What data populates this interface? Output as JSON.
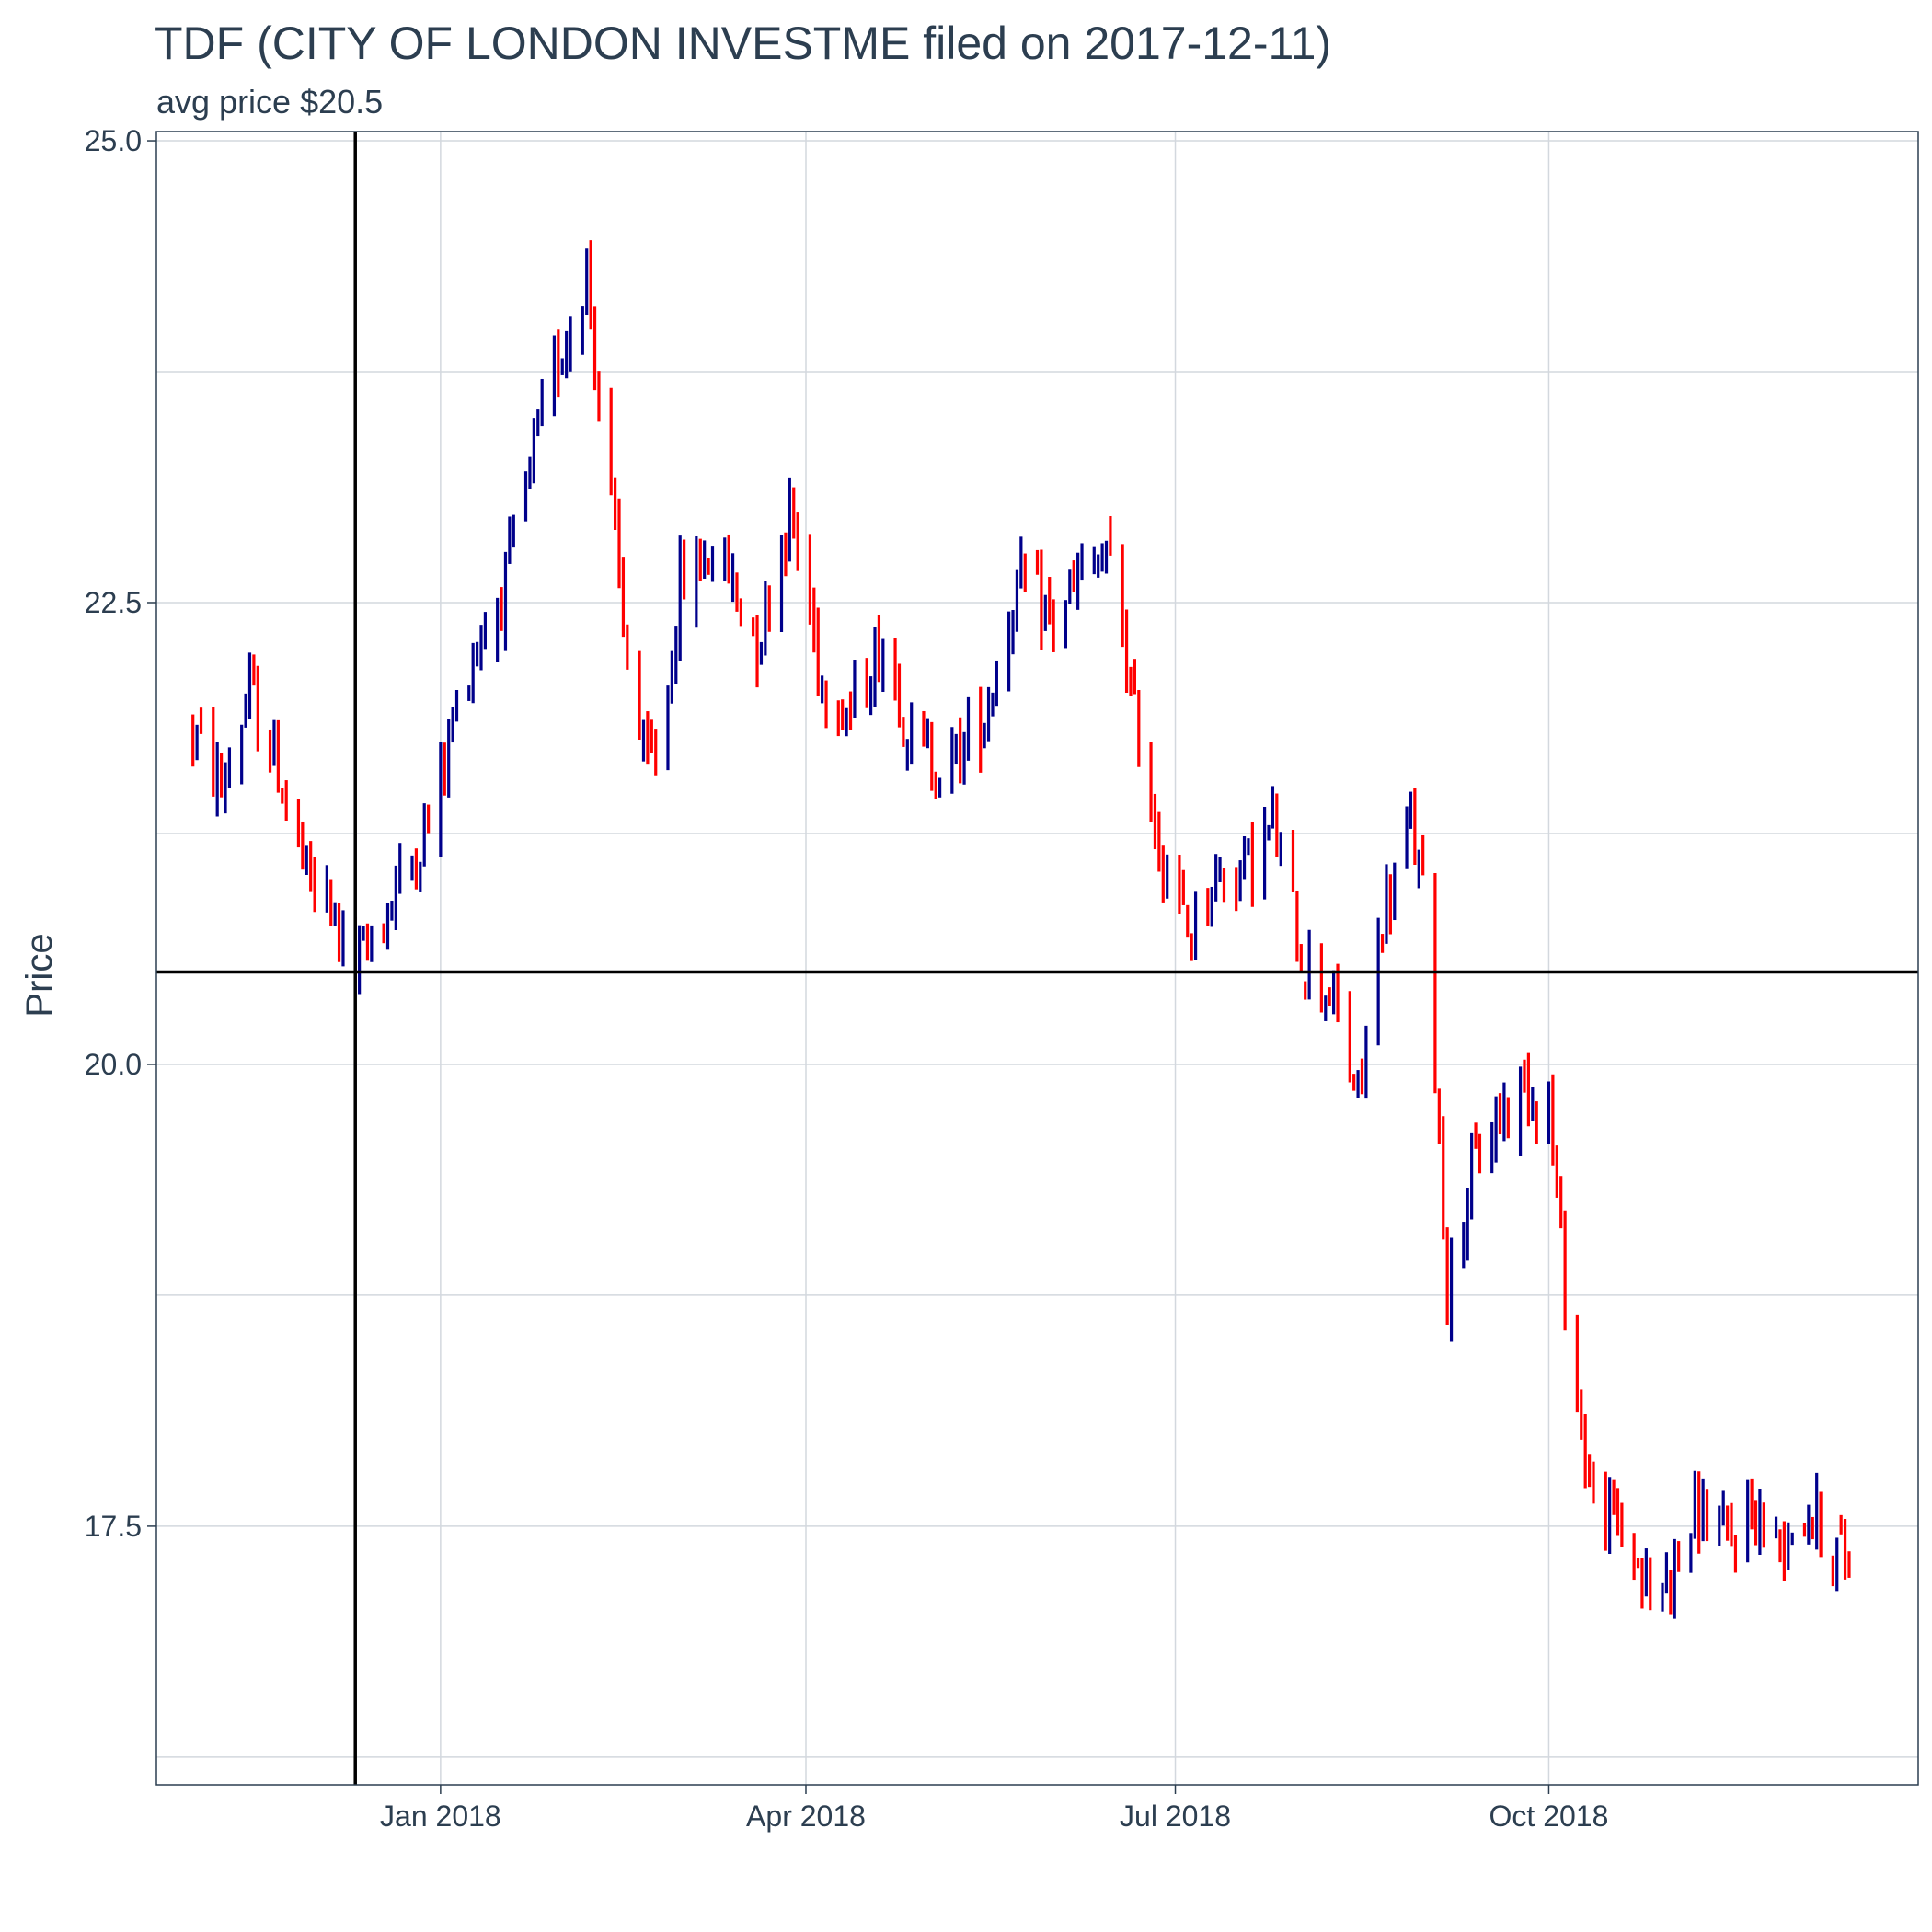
{
  "chart_data": {
    "type": "ohlc",
    "title": "TDF (CITY OF LONDON INVESTME filed on 2017-12-11)",
    "subtitle": "avg price $20.5",
    "xlabel": "",
    "ylabel": "Price",
    "xlim": [
      "2017-10-23",
      "2018-12-31"
    ],
    "ylim": [
      16.1,
      25.05
    ],
    "y_ticks": [
      17.5,
      20.0,
      22.5,
      25.0
    ],
    "y_tick_labels": [
      "17.5",
      "20.0",
      "22.5",
      "25.0"
    ],
    "y_minor_ticks": [
      16.25,
      18.75,
      21.25,
      23.75
    ],
    "x_ticks": [
      "2018-01-01",
      "2018-04-01",
      "2018-07-01",
      "2018-10-01"
    ],
    "x_tick_labels": [
      "Jan 2018",
      "Apr 2018",
      "Jul 2018",
      "Oct 2018"
    ],
    "reference_lines": {
      "filing_date": "2017-12-11",
      "avg_price": 20.5
    },
    "grid": true,
    "colors": {
      "up": "#00008B",
      "down": "#FF0000",
      "grid": "#d3d8de",
      "reference": "#000000",
      "text": "#2c3e50"
    },
    "price_path": [
      [
        "2017-11-01",
        21.8
      ],
      [
        "2017-11-08",
        21.5
      ],
      [
        "2017-11-15",
        22.0
      ],
      [
        "2017-11-22",
        21.6
      ],
      [
        "2017-11-29",
        21.0
      ],
      [
        "2017-12-06",
        20.8
      ],
      [
        "2017-12-11",
        20.5
      ],
      [
        "2017-12-20",
        20.9
      ],
      [
        "2017-12-29",
        21.3
      ],
      [
        "2018-01-08",
        22.2
      ],
      [
        "2018-01-17",
        22.6
      ],
      [
        "2018-01-24",
        23.3
      ],
      [
        "2018-01-31",
        23.9
      ],
      [
        "2018-02-06",
        24.3
      ],
      [
        "2018-02-10",
        23.4
      ],
      [
        "2018-02-15",
        22.4
      ],
      [
        "2018-02-20",
        21.6
      ],
      [
        "2018-02-24",
        21.7
      ],
      [
        "2018-03-01",
        22.6
      ],
      [
        "2018-03-10",
        22.8
      ],
      [
        "2018-03-20",
        22.3
      ],
      [
        "2018-03-28",
        23.0
      ],
      [
        "2018-04-05",
        22.1
      ],
      [
        "2018-04-12",
        21.9
      ],
      [
        "2018-04-20",
        22.3
      ],
      [
        "2018-04-28",
        21.7
      ],
      [
        "2018-05-06",
        21.6
      ],
      [
        "2018-05-15",
        21.9
      ],
      [
        "2018-05-23",
        22.6
      ],
      [
        "2018-06-01",
        22.4
      ],
      [
        "2018-06-10",
        22.7
      ],
      [
        "2018-06-16",
        22.7
      ],
      [
        "2018-06-20",
        22.0
      ],
      [
        "2018-06-27",
        21.2
      ],
      [
        "2018-07-04",
        20.7
      ],
      [
        "2018-07-10",
        21.0
      ],
      [
        "2018-07-20",
        21.1
      ],
      [
        "2018-07-25",
        21.3
      ],
      [
        "2018-08-01",
        20.6
      ],
      [
        "2018-08-08",
        20.4
      ],
      [
        "2018-08-15",
        19.8
      ],
      [
        "2018-08-21",
        20.8
      ],
      [
        "2018-08-28",
        21.3
      ],
      [
        "2018-09-01",
        20.8
      ],
      [
        "2018-09-06",
        18.8
      ],
      [
        "2018-09-12",
        19.4
      ],
      [
        "2018-09-18",
        19.7
      ],
      [
        "2018-09-25",
        19.9
      ],
      [
        "2018-10-01",
        19.8
      ],
      [
        "2018-10-06",
        18.5
      ],
      [
        "2018-10-12",
        17.6
      ],
      [
        "2018-10-19",
        17.5
      ],
      [
        "2018-10-26",
        17.1
      ],
      [
        "2018-11-01",
        17.3
      ],
      [
        "2018-11-07",
        17.6
      ],
      [
        "2018-11-14",
        17.4
      ],
      [
        "2018-11-20",
        17.6
      ],
      [
        "2018-11-26",
        17.4
      ],
      [
        "2018-12-03",
        17.6
      ],
      [
        "2018-12-10",
        17.4
      ],
      [
        "2018-12-14",
        17.3
      ]
    ]
  }
}
